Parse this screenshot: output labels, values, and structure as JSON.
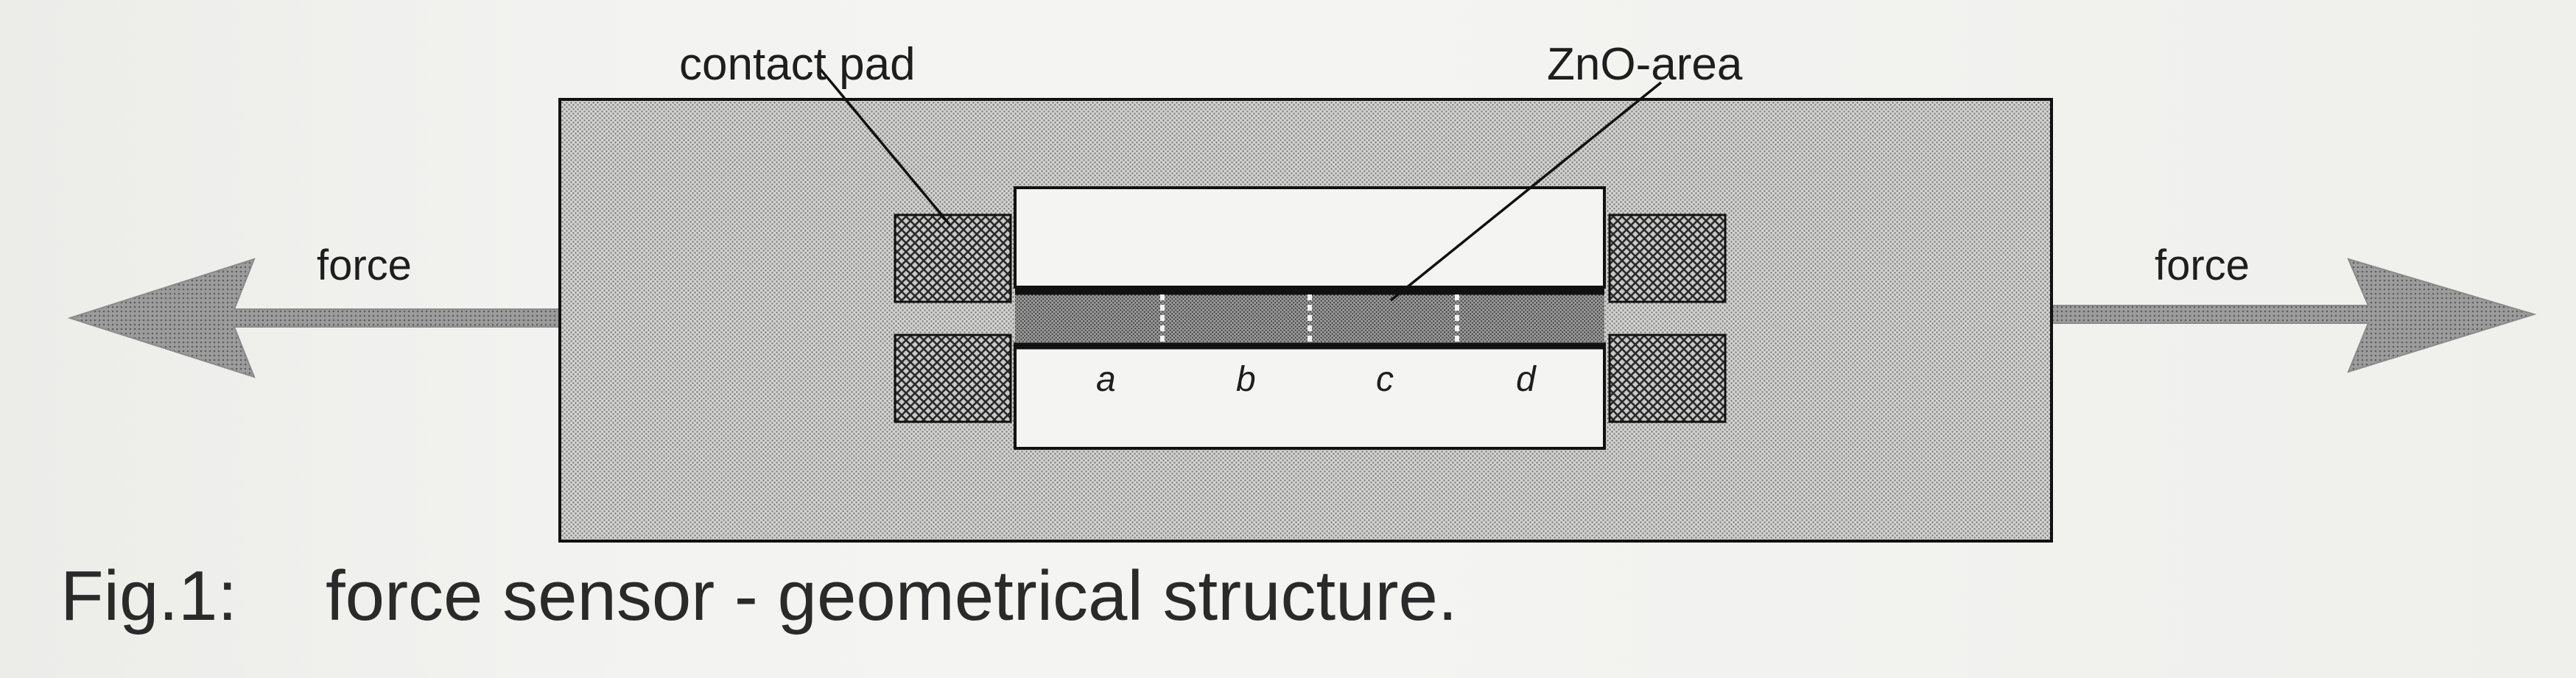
{
  "labels": {
    "contact_pad": "contact pad",
    "zno_area": "ZnO-area",
    "force_left": "force",
    "force_right": "force"
  },
  "segments": [
    "a",
    "b",
    "c",
    "d"
  ],
  "caption": {
    "number": "Fig.1:",
    "text": "force sensor - geometrical structure."
  },
  "colors": {
    "background": "#f1f1ef",
    "substrate_fill": "#c9c9c9",
    "zno_fill": "#8f8f8f",
    "pad_fill": "#6f6f6f",
    "outline": "#111111"
  }
}
